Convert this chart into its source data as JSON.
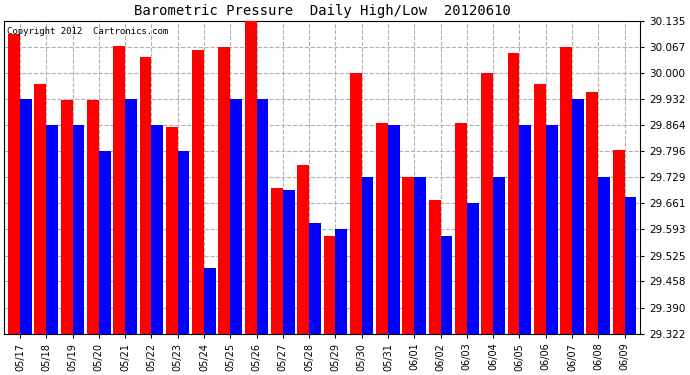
{
  "title": "Barometric Pressure  Daily High/Low  20120610",
  "copyright": "Copyright 2012  Cartronics.com",
  "dates": [
    "05/17",
    "05/18",
    "05/19",
    "05/20",
    "05/21",
    "05/22",
    "05/23",
    "05/24",
    "05/25",
    "05/26",
    "05/27",
    "05/28",
    "05/29",
    "05/30",
    "05/31",
    "06/01",
    "06/02",
    "06/03",
    "06/04",
    "06/05",
    "06/06",
    "06/07",
    "06/08",
    "06/09"
  ],
  "highs": [
    30.1,
    29.97,
    29.93,
    29.93,
    30.07,
    30.04,
    29.86,
    30.06,
    30.068,
    30.135,
    29.7,
    29.76,
    29.575,
    30.0,
    29.87,
    29.73,
    29.67,
    29.87,
    30.0,
    30.05,
    29.97,
    30.068,
    29.95,
    29.8
  ],
  "lows": [
    29.932,
    29.864,
    29.864,
    29.796,
    29.932,
    29.864,
    29.796,
    29.492,
    29.932,
    29.932,
    29.695,
    29.61,
    29.593,
    29.729,
    29.864,
    29.729,
    29.575,
    29.661,
    29.729,
    29.864,
    29.864,
    29.932,
    29.729,
    29.676
  ],
  "high_color": "#ff0000",
  "low_color": "#0000ff",
  "bg_color": "#ffffff",
  "grid_color": "#b0b0b0",
  "ymin": 29.322,
  "ymax": 30.135,
  "yticks": [
    29.322,
    29.39,
    29.458,
    29.525,
    29.593,
    29.661,
    29.729,
    29.796,
    29.864,
    29.932,
    30.0,
    30.067,
    30.135
  ]
}
